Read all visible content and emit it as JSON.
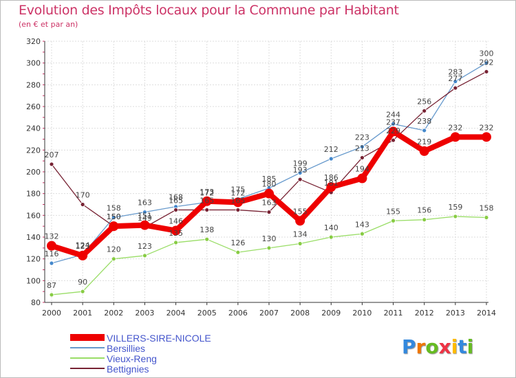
{
  "chart_data": {
    "type": "line",
    "title": "Evolution des Impôts locaux pour la Commune par Habitant",
    "subtitle": "(en € et par an)",
    "xlabel": "",
    "ylabel": "",
    "ylim": [
      80,
      320
    ],
    "yticks": [
      80,
      100,
      120,
      140,
      160,
      180,
      200,
      220,
      240,
      260,
      280,
      300,
      320
    ],
    "x": [
      2000,
      2001,
      2002,
      2003,
      2004,
      2005,
      2006,
      2007,
      2008,
      2009,
      2010,
      2011,
      2012,
      2013,
      2014
    ],
    "grid": true,
    "legend": "bottom-left",
    "series": [
      {
        "name": "VILLERS-SIRE-NICOLE",
        "color": "#ee0000",
        "values": [
          132,
          123,
          150,
          151,
          146,
          173,
          172,
          180,
          155,
          186,
          194,
          237,
          219,
          232,
          232
        ],
        "labels": [
          "132",
          "123",
          "150",
          "151",
          "146",
          "173",
          "172",
          "180",
          "155",
          "186",
          "194",
          "237",
          "219",
          "232",
          "232"
        ]
      },
      {
        "name": "Bersillies",
        "color": "#6699cc",
        "values": [
          116,
          124,
          158,
          163,
          168,
          172,
          175,
          185,
          199,
          212,
          223,
          244,
          238,
          283,
          300
        ],
        "labels": [
          "116",
          "124",
          "158",
          "163",
          "168",
          "172",
          "175",
          "185",
          "199",
          "212",
          "223",
          "244",
          "238",
          "283",
          "300"
        ]
      },
      {
        "name": "Vieux-Reng",
        "color": "#99dd66",
        "values": [
          87,
          90,
          120,
          123,
          135,
          138,
          126,
          130,
          134,
          140,
          143,
          155,
          156,
          159,
          158
        ],
        "labels": [
          "87",
          "90",
          "120",
          "123",
          "135",
          "138",
          "126",
          "130",
          "134",
          "140",
          "143",
          "155",
          "156",
          "159",
          "158"
        ]
      },
      {
        "name": "Bettignies",
        "color": "#772233",
        "values": [
          207,
          170,
          150,
          149,
          165,
          165,
          165,
          163,
          193,
          181,
          213,
          229,
          256,
          277,
          292
        ],
        "labels": [
          "207",
          "170",
          "150",
          "149",
          "165",
          "165",
          "165",
          "163",
          "193",
          "181",
          "213",
          "229",
          "256",
          "277",
          "292"
        ]
      }
    ]
  },
  "brand": {
    "text": [
      "P",
      "r",
      "o",
      "x",
      "i",
      "t",
      "i"
    ],
    "colors": [
      "#3388dd",
      "#ee7700",
      "#66bb22",
      "#ee3344",
      "#ffbb00",
      "#3388dd",
      "#66bb22"
    ]
  }
}
